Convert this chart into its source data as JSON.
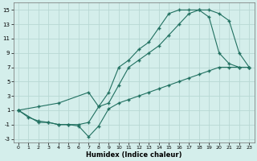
{
  "xlabel": "Humidex (Indice chaleur)",
  "bg_color": "#d4eeeb",
  "grid_color": "#b8d8d4",
  "line_color": "#207060",
  "xlim": [
    -0.5,
    23.5
  ],
  "ylim": [
    -3.5,
    16
  ],
  "xticks": [
    0,
    1,
    2,
    3,
    4,
    5,
    6,
    7,
    8,
    9,
    10,
    11,
    12,
    13,
    14,
    15,
    16,
    17,
    18,
    19,
    20,
    21,
    22,
    23
  ],
  "yticks": [
    -3,
    -1,
    1,
    3,
    5,
    7,
    9,
    11,
    13,
    15
  ],
  "line1_x": [
    0,
    1,
    2,
    3,
    4,
    5,
    6,
    7,
    8,
    9,
    10,
    11,
    12,
    13,
    14,
    15,
    16,
    17,
    18,
    19,
    20,
    21,
    22,
    23
  ],
  "line1_y": [
    1,
    0,
    -0.5,
    -0.7,
    -1,
    -1,
    -1.2,
    -2.7,
    -1.2,
    1.2,
    2,
    2.5,
    3.0,
    3.5,
    4.0,
    4.5,
    5.0,
    5.5,
    6.0,
    6.5,
    7.0,
    7.0,
    7.0,
    7.0
  ],
  "line2_x": [
    0,
    2,
    3,
    4,
    5,
    6,
    7,
    8,
    9,
    10,
    11,
    12,
    13,
    14,
    15,
    16,
    17,
    18,
    19,
    20,
    21,
    22,
    23
  ],
  "line2_y": [
    1,
    -0.7,
    -0.7,
    -1,
    -1,
    -1,
    -0.7,
    1.5,
    3.5,
    7.0,
    8.0,
    9.5,
    10.5,
    12.5,
    14.5,
    15.0,
    15.0,
    15.0,
    14.0,
    9.0,
    7.5,
    7.0,
    7.0
  ],
  "line3_x": [
    0,
    2,
    4,
    7,
    8,
    9,
    10,
    11,
    12,
    13,
    14,
    15,
    16,
    17,
    18,
    19,
    20,
    21,
    22,
    23
  ],
  "line3_y": [
    1,
    1.5,
    2.0,
    3.5,
    1.5,
    2.0,
    4.5,
    7.0,
    8.0,
    9.0,
    10.0,
    11.5,
    13.0,
    14.5,
    15.0,
    15.0,
    14.5,
    13.5,
    9.0,
    7.0
  ]
}
